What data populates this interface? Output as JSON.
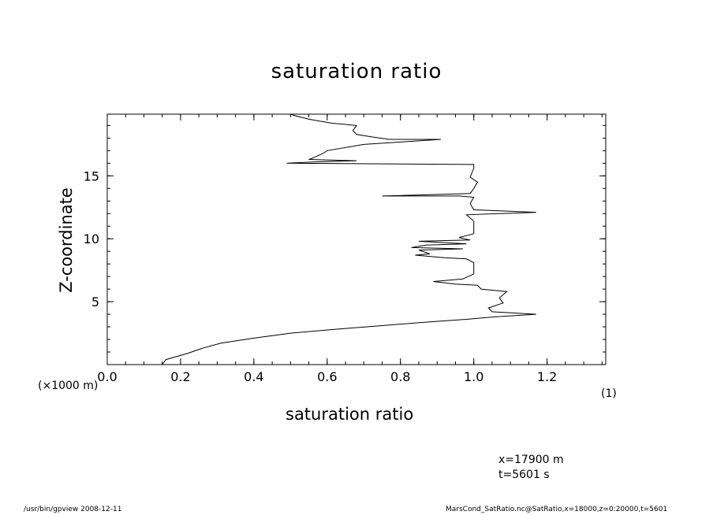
{
  "chart_data": {
    "type": "line",
    "title": "saturation ratio",
    "xlabel": "saturation ratio",
    "ylabel": "Z-coordinate",
    "x_unit_label": "(1)",
    "y_unit_label": "(×1000 m)",
    "xlim": [
      0,
      1.36
    ],
    "ylim": [
      0,
      19.9
    ],
    "x_ticks": [
      "0.0",
      "0.2",
      "0.4",
      "0.6",
      "0.8",
      "1.0",
      "1.2"
    ],
    "x_tick_values": [
      0,
      0.2,
      0.4,
      0.6,
      0.8,
      1.0,
      1.2
    ],
    "y_ticks": [
      "5",
      "10",
      "15"
    ],
    "y_tick_values": [
      5,
      10,
      15
    ],
    "grid": false,
    "series": [
      {
        "x": [
          0.15,
          0.16,
          0.22,
          0.26,
          0.31,
          0.4,
          0.5,
          0.62,
          0.75,
          0.88,
          0.98,
          1.06,
          1.17,
          1.05,
          1.04,
          1.08,
          1.07,
          1.09,
          1.02,
          1.01,
          0.95,
          0.89,
          0.97,
          1.0,
          1.0,
          0.98,
          0.92,
          0.84,
          0.88,
          0.85,
          0.97,
          0.83,
          0.87,
          0.98,
          0.85,
          0.99,
          0.96,
          1.0,
          1.0,
          0.98,
          1.17,
          1.0,
          0.99,
          1.0,
          0.96,
          0.75,
          0.99,
          1.0,
          1.01,
          0.99,
          1.0,
          1.0,
          0.49,
          0.56,
          0.68,
          0.55,
          0.56,
          0.59,
          0.6,
          0.7,
          0.91,
          0.77,
          0.72,
          0.68,
          0.67,
          0.68,
          0.61,
          0.55,
          0.51,
          0.5
        ],
        "y": [
          0.0,
          0.4,
          0.9,
          1.3,
          1.7,
          2.1,
          2.5,
          2.8,
          3.1,
          3.4,
          3.6,
          3.8,
          4.0,
          4.2,
          4.5,
          4.9,
          5.3,
          5.8,
          6.0,
          6.3,
          6.4,
          6.6,
          6.8,
          7.2,
          8.1,
          8.4,
          8.5,
          8.7,
          8.8,
          9.1,
          9.2,
          9.3,
          9.5,
          9.6,
          9.8,
          9.9,
          10.1,
          10.4,
          11.4,
          11.9,
          12.1,
          12.3,
          12.8,
          13.3,
          13.4,
          13.4,
          13.6,
          14.0,
          14.5,
          14.9,
          15.6,
          15.9,
          16.0,
          16.1,
          16.2,
          16.3,
          16.4,
          16.8,
          17.0,
          17.5,
          17.9,
          17.9,
          18.1,
          18.3,
          18.6,
          19.0,
          19.2,
          19.5,
          19.8,
          19.9
        ]
      }
    ],
    "annotations": [
      "x=17900 m",
      "t=5601 s"
    ]
  },
  "footer": {
    "left": "/usr/bin/gpview   2008-12-11",
    "right": "MarsCond_SatRatio.nc@SatRatio,x=18000,z=0:20000,t=5601"
  }
}
